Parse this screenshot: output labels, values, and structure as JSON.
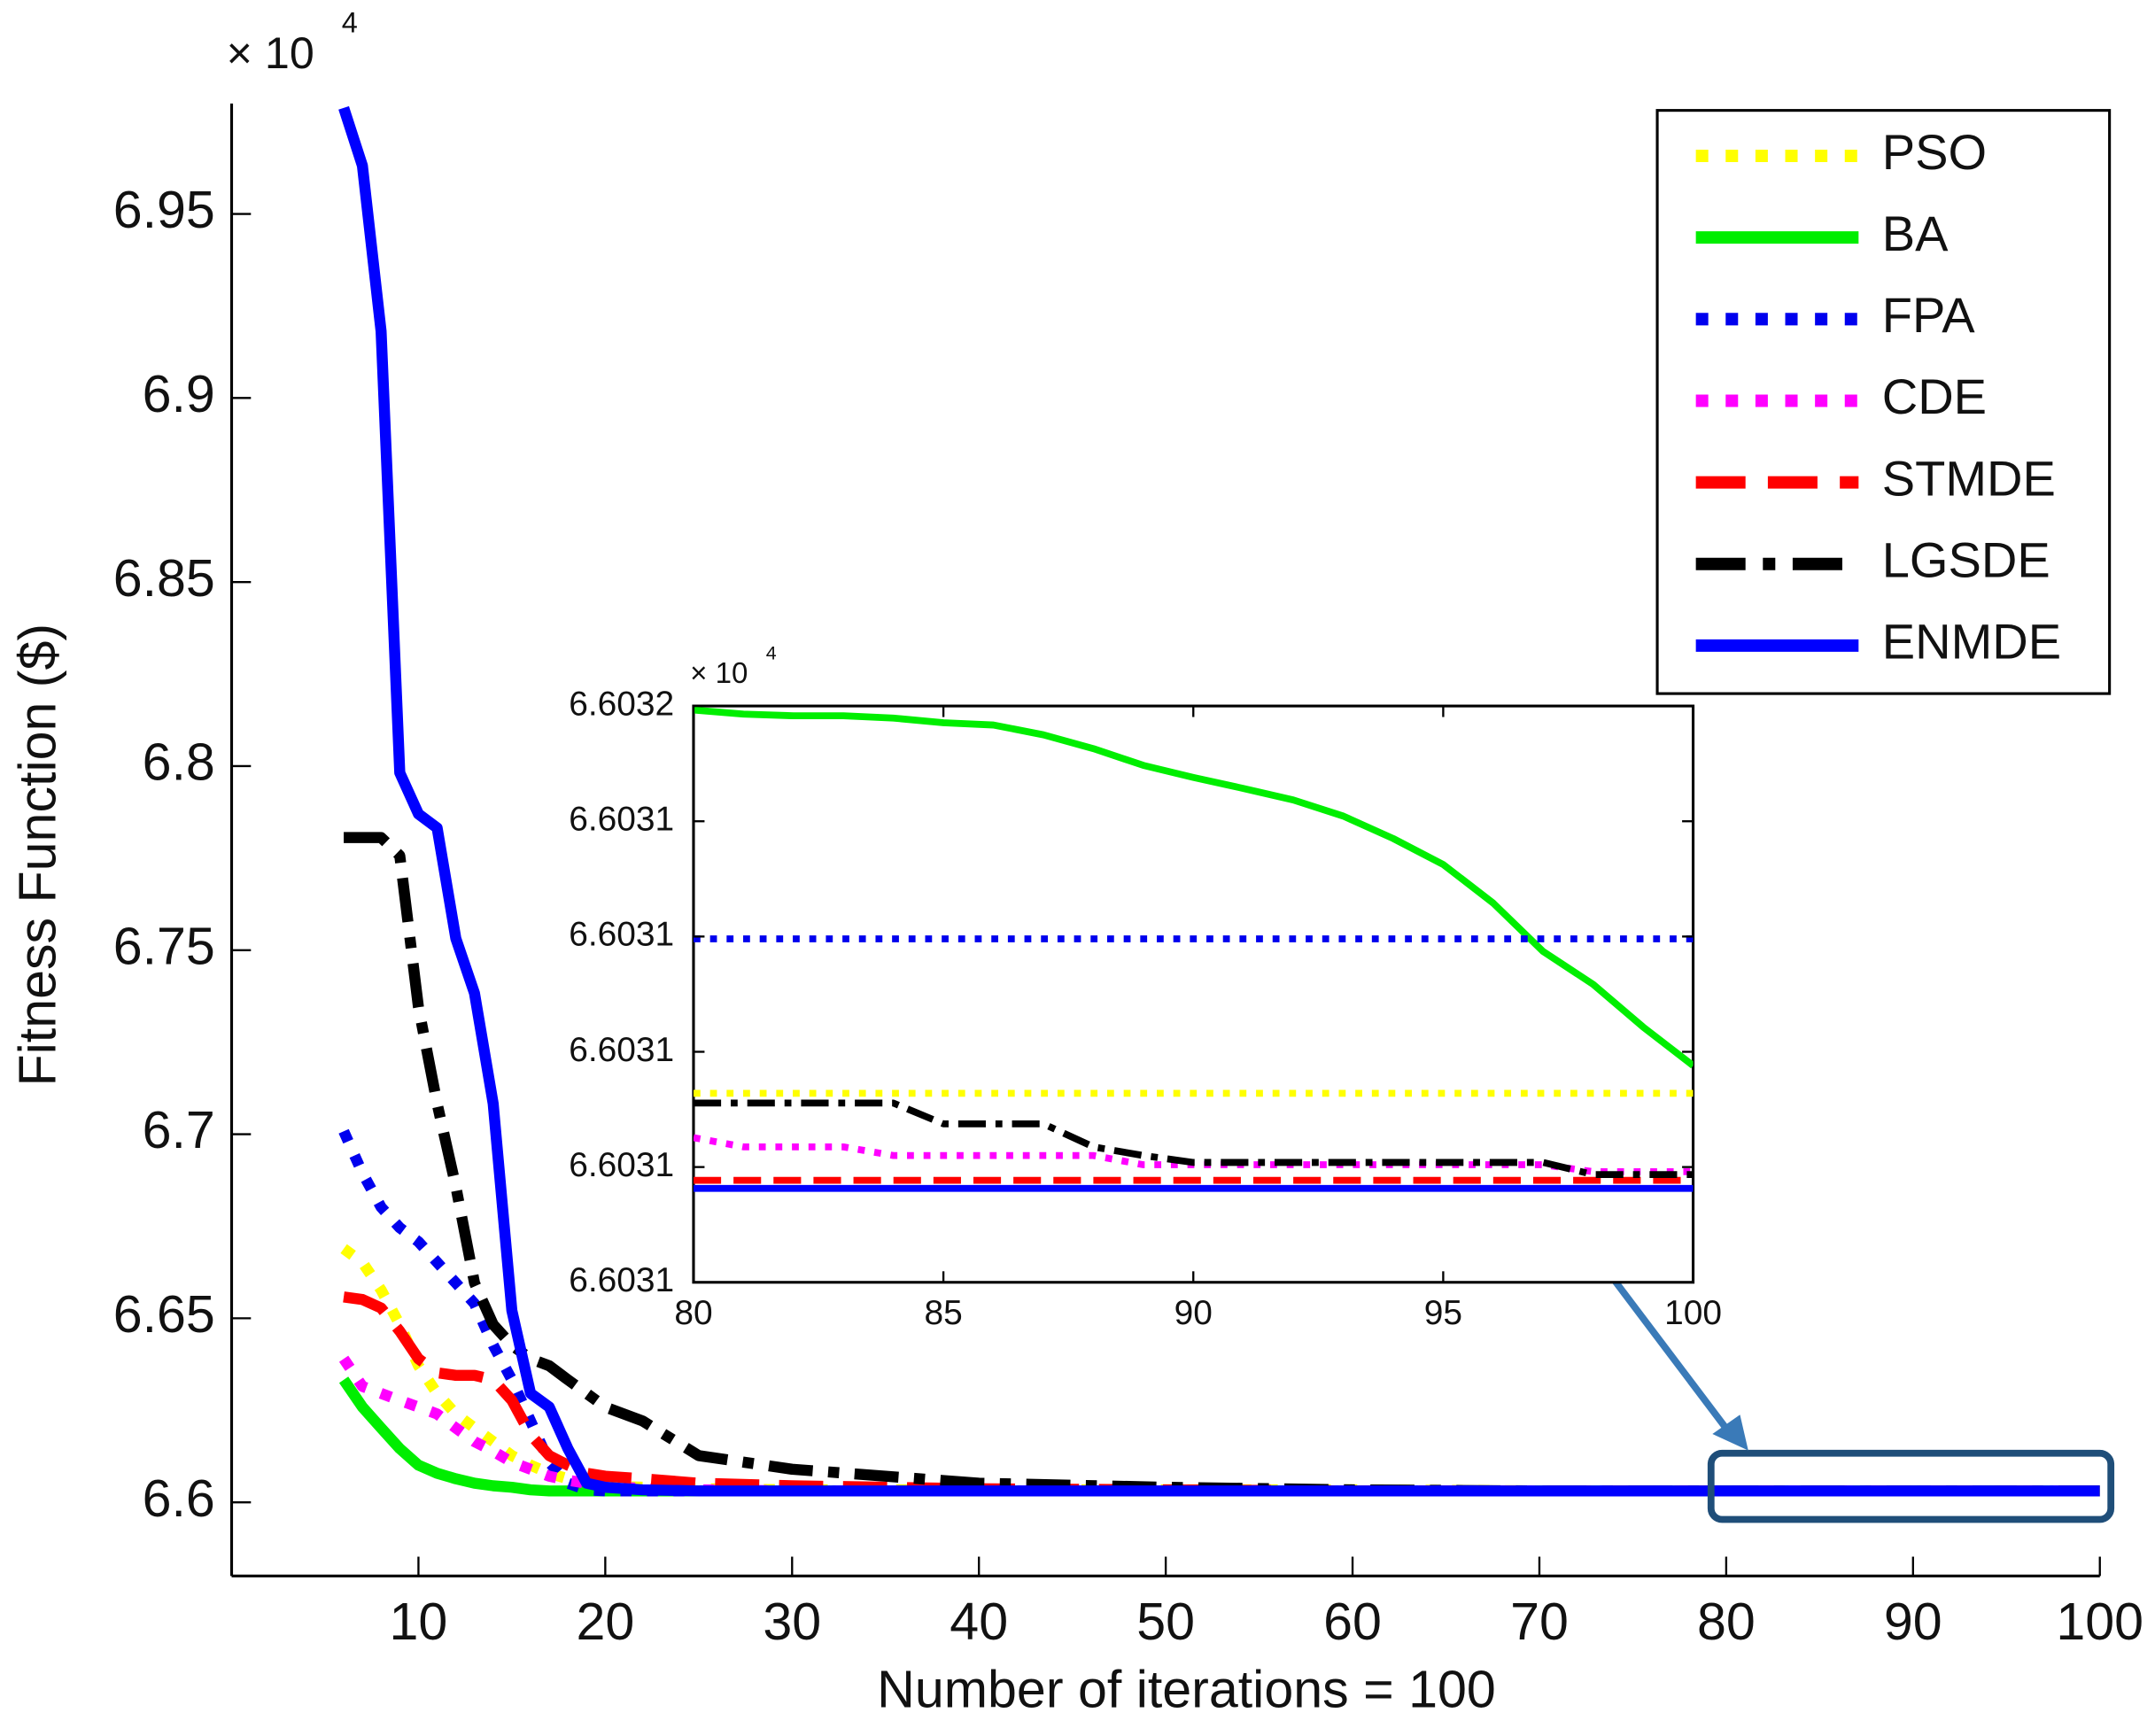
{
  "chart_data": [
    {
      "type": "line",
      "x_label": "Number of iterations = 100",
      "y_label": "Fitness Function ($)",
      "y_multiplier": "× 10",
      "y_multiplier_exponent": "4",
      "xlim": [
        0,
        100
      ],
      "xticks": [
        10,
        20,
        30,
        40,
        50,
        60,
        70,
        80,
        90,
        100
      ],
      "ylim": [
        6.58,
        6.98
      ],
      "yticks": [
        6.6,
        6.65,
        6.7,
        6.75,
        6.8,
        6.85,
        6.9,
        6.95
      ],
      "legend": "upper right",
      "x": [
        6,
        7,
        8,
        9,
        10,
        11,
        12,
        13,
        14,
        15,
        16,
        17,
        18,
        19,
        20,
        22,
        25,
        30,
        35,
        40,
        50,
        60,
        70,
        80,
        90,
        100
      ],
      "series": [
        {
          "name": "PSO",
          "color": "#ffff00",
          "style": "dotted",
          "values": [
            6.6689,
            6.6652,
            6.6577,
            6.6483,
            6.6371,
            6.6296,
            6.624,
            6.6202,
            6.6165,
            6.6127,
            6.6101,
            6.6079,
            6.6064,
            6.6052,
            6.6045,
            6.6041,
            6.6037,
            6.6034,
            6.6034,
            6.6034,
            6.6034,
            6.6034,
            6.6031,
            6.6031,
            6.6031,
            6.6031
          ]
        },
        {
          "name": "BA",
          "color": "#00ee00",
          "style": "solid",
          "values": [
            6.6333,
            6.6259,
            6.6202,
            6.6146,
            6.6101,
            6.6079,
            6.6064,
            6.6052,
            6.6045,
            6.6041,
            6.6034,
            6.6031,
            6.6031,
            6.6031,
            6.6031,
            6.6031,
            6.6031,
            6.6031,
            6.6031,
            6.6031,
            6.6031,
            6.6031,
            6.6031,
            6.6031,
            6.6031,
            6.6031
          ]
        },
        {
          "name": "FPA",
          "color": "#0000ee",
          "style": "dotted",
          "values": [
            6.7008,
            6.6895,
            6.6802,
            6.6746,
            6.6708,
            6.6652,
            6.6596,
            6.654,
            6.6427,
            6.6333,
            6.6221,
            6.6109,
            6.6052,
            6.6034,
            6.6031,
            6.6031,
            6.6031,
            6.6031,
            6.6031,
            6.6031,
            6.6031,
            6.6031,
            6.6031,
            6.6031,
            6.6031,
            6.6031
          ]
        },
        {
          "name": "CDE",
          "color": "#ff00ff",
          "style": "dotted",
          "values": [
            6.639,
            6.6315,
            6.6296,
            6.6277,
            6.6259,
            6.624,
            6.6202,
            6.6165,
            6.6139,
            6.6109,
            6.609,
            6.6071,
            6.606,
            6.6052,
            6.6045,
            6.6037,
            6.6034,
            6.6031,
            6.6031,
            6.6031,
            6.6031,
            6.6031,
            6.6031,
            6.6031,
            6.6031,
            6.6031
          ]
        },
        {
          "name": "STMDE",
          "color": "#ff0000",
          "style": "dashed",
          "values": [
            6.6558,
            6.6551,
            6.6528,
            6.6465,
            6.639,
            6.6352,
            6.6345,
            6.6345,
            6.6333,
            6.6277,
            6.6184,
            6.6127,
            6.6101,
            6.6079,
            6.6071,
            6.6064,
            6.6052,
            6.6045,
            6.6041,
            6.6037,
            6.6034,
            6.6031,
            6.6031,
            6.6031,
            6.6031,
            6.6031
          ]
        },
        {
          "name": "LGSDE",
          "color": "#000000",
          "style": "dashdot",
          "values": [
            6.7806,
            6.7806,
            6.7806,
            6.7757,
            6.7345,
            6.7083,
            6.6858,
            6.6596,
            6.6483,
            6.6427,
            6.639,
            6.6371,
            6.6333,
            6.6296,
            6.6259,
            6.6221,
            6.6127,
            6.609,
            6.6071,
            6.6052,
            6.6041,
            6.6034,
            6.6031,
            6.6031,
            6.6031,
            6.6031
          ]
        },
        {
          "name": "ENMDE",
          "color": "#0000ff",
          "style": "solid",
          "values": [
            6.9788,
            6.9631,
            6.9181,
            6.7982,
            6.787,
            6.7832,
            6.7532,
            6.7383,
            6.7083,
            6.6521,
            6.6296,
            6.6259,
            6.6146,
            6.6052,
            6.6041,
            6.6034,
            6.6031,
            6.6031,
            6.6031,
            6.6031,
            6.6031,
            6.6031,
            6.6031,
            6.6031,
            6.6031,
            6.6031
          ]
        }
      ]
    },
    {
      "type": "line",
      "y_multiplier": "× 10",
      "y_multiplier_exponent": "4",
      "xlim": [
        80,
        100
      ],
      "xticks": [
        80,
        85,
        90,
        95,
        100
      ],
      "ylim": [
        6.60305,
        6.60315
      ],
      "yticks": [
        {
          "value": 6.60315,
          "label": "6.6032"
        },
        {
          "value": 6.60313,
          "label": "6.6031"
        },
        {
          "value": 6.60311,
          "label": "6.6031"
        },
        {
          "value": 6.60309,
          "label": "6.6031"
        },
        {
          "value": 6.60307,
          "label": "6.6031"
        },
        {
          "value": 6.60305,
          "label": "6.6031"
        }
      ],
      "x": [
        80,
        81,
        82,
        83,
        84,
        85,
        86,
        87,
        88,
        89,
        90,
        91,
        92,
        93,
        94,
        95,
        96,
        97,
        98,
        99,
        100
      ],
      "series": [
        {
          "name": "PSO",
          "color": "#ffff00",
          "style": "dotted",
          "values": [
            6.6030828,
            6.6030828,
            6.6030828,
            6.6030828,
            6.6030828,
            6.6030828,
            6.6030828,
            6.6030828,
            6.6030828,
            6.6030828,
            6.6030828,
            6.6030828,
            6.6030828,
            6.6030828,
            6.6030828,
            6.6030828,
            6.6030828,
            6.6030828,
            6.6030828,
            6.6030828,
            6.6030828
          ]
        },
        {
          "name": "BA",
          "color": "#00ee00",
          "style": "solid",
          "values": [
            6.6031493,
            6.6031486,
            6.6031483,
            6.6031483,
            6.6031479,
            6.6031471,
            6.6031467,
            6.603145,
            6.6031426,
            6.6031397,
            6.6031376,
            6.6031357,
            6.6031337,
            6.6031309,
            6.603127,
            6.6031225,
            6.6031158,
            6.6031074,
            6.6031017,
            6.6030943,
            6.6030876
          ]
        },
        {
          "name": "FPA",
          "color": "#0000ee",
          "style": "dotted",
          "values": [
            6.6031096,
            6.6031096,
            6.6031096,
            6.6031096,
            6.6031096,
            6.6031096,
            6.6031096,
            6.6031096,
            6.6031096,
            6.6031096,
            6.6031096,
            6.6031096,
            6.6031096,
            6.6031096,
            6.6031096,
            6.6031096,
            6.6031096,
            6.6031096,
            6.6031096,
            6.6031096,
            6.6031096
          ]
        },
        {
          "name": "CDE",
          "color": "#ff00ff",
          "style": "dotted",
          "values": [
            6.6030751,
            6.6030735,
            6.6030735,
            6.6030735,
            6.603072,
            6.603072,
            6.603072,
            6.603072,
            6.603072,
            6.6030704,
            6.6030704,
            6.6030704,
            6.6030704,
            6.6030704,
            6.6030704,
            6.6030704,
            6.6030704,
            6.6030704,
            6.6030692,
            6.6030692,
            6.6030692
          ]
        },
        {
          "name": "STMDE",
          "color": "#ff0000",
          "style": "dashed",
          "values": [
            6.6030677,
            6.6030677,
            6.6030677,
            6.6030677,
            6.6030677,
            6.6030677,
            6.6030677,
            6.6030677,
            6.6030677,
            6.6030677,
            6.6030677,
            6.6030677,
            6.6030677,
            6.6030677,
            6.6030677,
            6.6030677,
            6.6030677,
            6.6030677,
            6.6030677,
            6.6030677,
            6.6030677
          ]
        },
        {
          "name": "LGSDE",
          "color": "#000000",
          "style": "dashdot",
          "values": [
            6.6030811,
            6.6030811,
            6.6030811,
            6.6030811,
            6.6030811,
            6.6030775,
            6.6030775,
            6.6030775,
            6.6030735,
            6.603072,
            6.6030708,
            6.6030708,
            6.6030708,
            6.6030708,
            6.6030708,
            6.6030708,
            6.6030708,
            6.6030708,
            6.6030687,
            6.6030687,
            6.6030687
          ]
        },
        {
          "name": "ENMDE",
          "color": "#0000ff",
          "style": "solid",
          "values": [
            6.6030663,
            6.6030663,
            6.6030663,
            6.6030663,
            6.6030663,
            6.6030663,
            6.6030663,
            6.6030663,
            6.6030663,
            6.6030663,
            6.6030663,
            6.6030663,
            6.6030663,
            6.6030663,
            6.6030663,
            6.6030663,
            6.6030663,
            6.6030663,
            6.6030663,
            6.6030663,
            6.6030663
          ]
        }
      ]
    }
  ]
}
